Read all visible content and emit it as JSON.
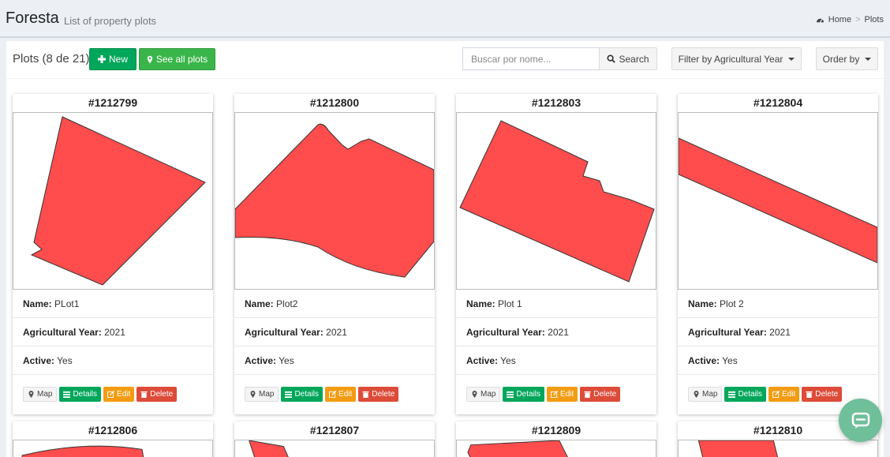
{
  "header": {
    "title": "Foresta",
    "subtitle": "List of property plots",
    "breadcrumb": {
      "home": "Home",
      "separator": ">",
      "current": "Plots"
    }
  },
  "toolbar": {
    "count_label": "Plots (8 de 21)",
    "new_label": "New",
    "see_all_label": "See all plots",
    "search_placeholder": "Buscar por nome...",
    "search_label": "Search",
    "filter_label": "Filter by Agricultural Year",
    "order_label": "Order by"
  },
  "labels": {
    "name": "Name:",
    "year": "Agricultural Year:",
    "active": "Active:",
    "map": "Map",
    "details": "Details",
    "edit": "Edit",
    "delete": "Delete"
  },
  "plots": [
    {
      "id": "#1212799",
      "name": "PLot1",
      "year": "2021",
      "active": "Yes"
    },
    {
      "id": "#1212800",
      "name": "Plot2",
      "year": "2021",
      "active": "Yes"
    },
    {
      "id": "#1212803",
      "name": "Plot 1",
      "year": "2021",
      "active": "Yes"
    },
    {
      "id": "#1212804",
      "name": "Plot 2",
      "year": "2021",
      "active": "Yes"
    }
  ],
  "plots_row2": [
    {
      "id": "#1212806"
    },
    {
      "id": "#1212807"
    },
    {
      "id": "#1212809"
    },
    {
      "id": "#1212810"
    }
  ],
  "colors": {
    "plot_fill": "#ff4d4d",
    "success": "#00a65a",
    "warning": "#f39c12",
    "danger": "#dd4b39",
    "chat": "#6fbf9a"
  }
}
